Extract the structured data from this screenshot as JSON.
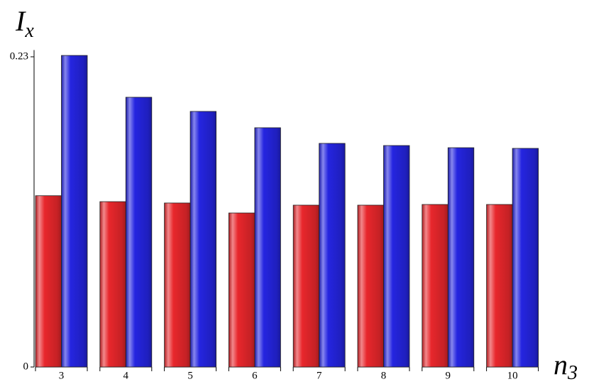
{
  "chart_data": {
    "type": "bar",
    "y_label": {
      "main": "I",
      "sub": "x"
    },
    "x_label": {
      "main": "n",
      "sub": "3"
    },
    "categories": [
      "3",
      "4",
      "5",
      "6",
      "7",
      "8",
      "9",
      "10"
    ],
    "series": [
      {
        "color": "#e8272c",
        "values": [
          0.127,
          0.1226,
          0.1216,
          0.1142,
          0.12,
          0.12,
          0.1205,
          0.1205
        ]
      },
      {
        "color": "#2525e0",
        "values": [
          0.231,
          0.2,
          0.1895,
          0.1774,
          0.1658,
          0.1642,
          0.1626,
          0.1621
        ]
      }
    ],
    "ylim": [
      0,
      0.235
    ],
    "yticks": [
      0,
      0.23
    ]
  }
}
